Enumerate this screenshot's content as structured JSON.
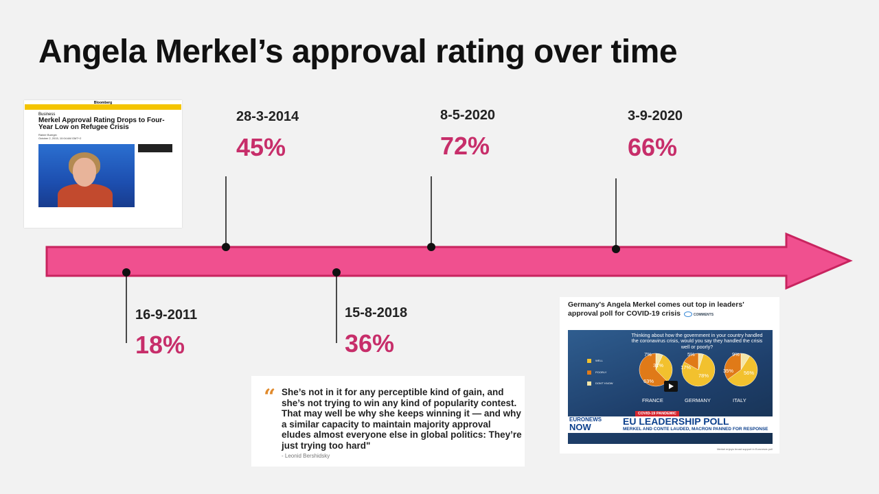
{
  "title": "Angela Merkel’s approval rating over time",
  "colors": {
    "arrow_fill": "#f0508f",
    "arrow_stroke": "#c8245f",
    "percent": "#c72e6a"
  },
  "events": [
    {
      "date": "16-9-2011",
      "rating": "18%",
      "position": "below"
    },
    {
      "date": "28-3-2014",
      "rating": "45%",
      "position": "above"
    },
    {
      "date": "15-8-2018",
      "rating": "36%",
      "position": "below"
    },
    {
      "date": "8-5-2020",
      "rating": "72%",
      "position": "above"
    },
    {
      "date": "3-9-2020",
      "rating": "66%",
      "position": "above"
    }
  ],
  "bloomberg_card": {
    "brand": "Bloomberg",
    "section": "Business",
    "headline": "Merkel Approval Rating Drops to Four-Year Low on Refugee Crisis",
    "byline": "Rainer Buergin",
    "dateline": "October 2, 2015, 10:04 AM GMT+2"
  },
  "quote_card": {
    "text": "She’s not in it for any perceptible kind of gain, and she’s not trying to win any kind of popularity contest. That may well be why she keeps winning it — and why a similar capacity to maintain majority approval eludes almost everyone else in global politics: They’re just trying too hard\"",
    "author": "- Leonid Bershidsky"
  },
  "euronews_card": {
    "headline": "Germany's Angela Merkel comes out top in leaders' approval poll for COVID-19 crisis",
    "comments_label": "COMMENTS",
    "question": "Thinking about how the government in your country handled the coronavirus crisis, would you say they handled the crisis well or poorly?",
    "legend": [
      {
        "label": "WELL",
        "color": "#f2c12e"
      },
      {
        "label": "POORLY",
        "color": "#e07a18"
      },
      {
        "label": "DON'T KNOW",
        "color": "#f5e6a8"
      }
    ],
    "countries": [
      {
        "name": "FRANCE",
        "well": "31%",
        "poorly": "63%",
        "dont_know": "7%",
        "well_pct": 31,
        "poorly_pct": 63,
        "dont_know_pct": 7
      },
      {
        "name": "GERMANY",
        "well": "78%",
        "poorly": "17%",
        "dont_know": "5%",
        "well_pct": 78,
        "poorly_pct": 17,
        "dont_know_pct": 5
      },
      {
        "name": "ITALY",
        "well": "56%",
        "poorly": "35%",
        "dont_know": "9%",
        "well_pct": 56,
        "poorly_pct": 35,
        "dont_know_pct": 9
      }
    ],
    "pandemic_tag": "COVID-19 PANDEMIC",
    "brand_top": "EURONEWS",
    "brand_bottom": "NOW",
    "banner_title": "EU LEADERSHIP POLL",
    "banner_subtitle": "MERKEL AND CONTE LAUDED, MACRON PANNED FOR RESPONSE",
    "caption": "Merkel enjoys broad support in Euronews poll"
  }
}
